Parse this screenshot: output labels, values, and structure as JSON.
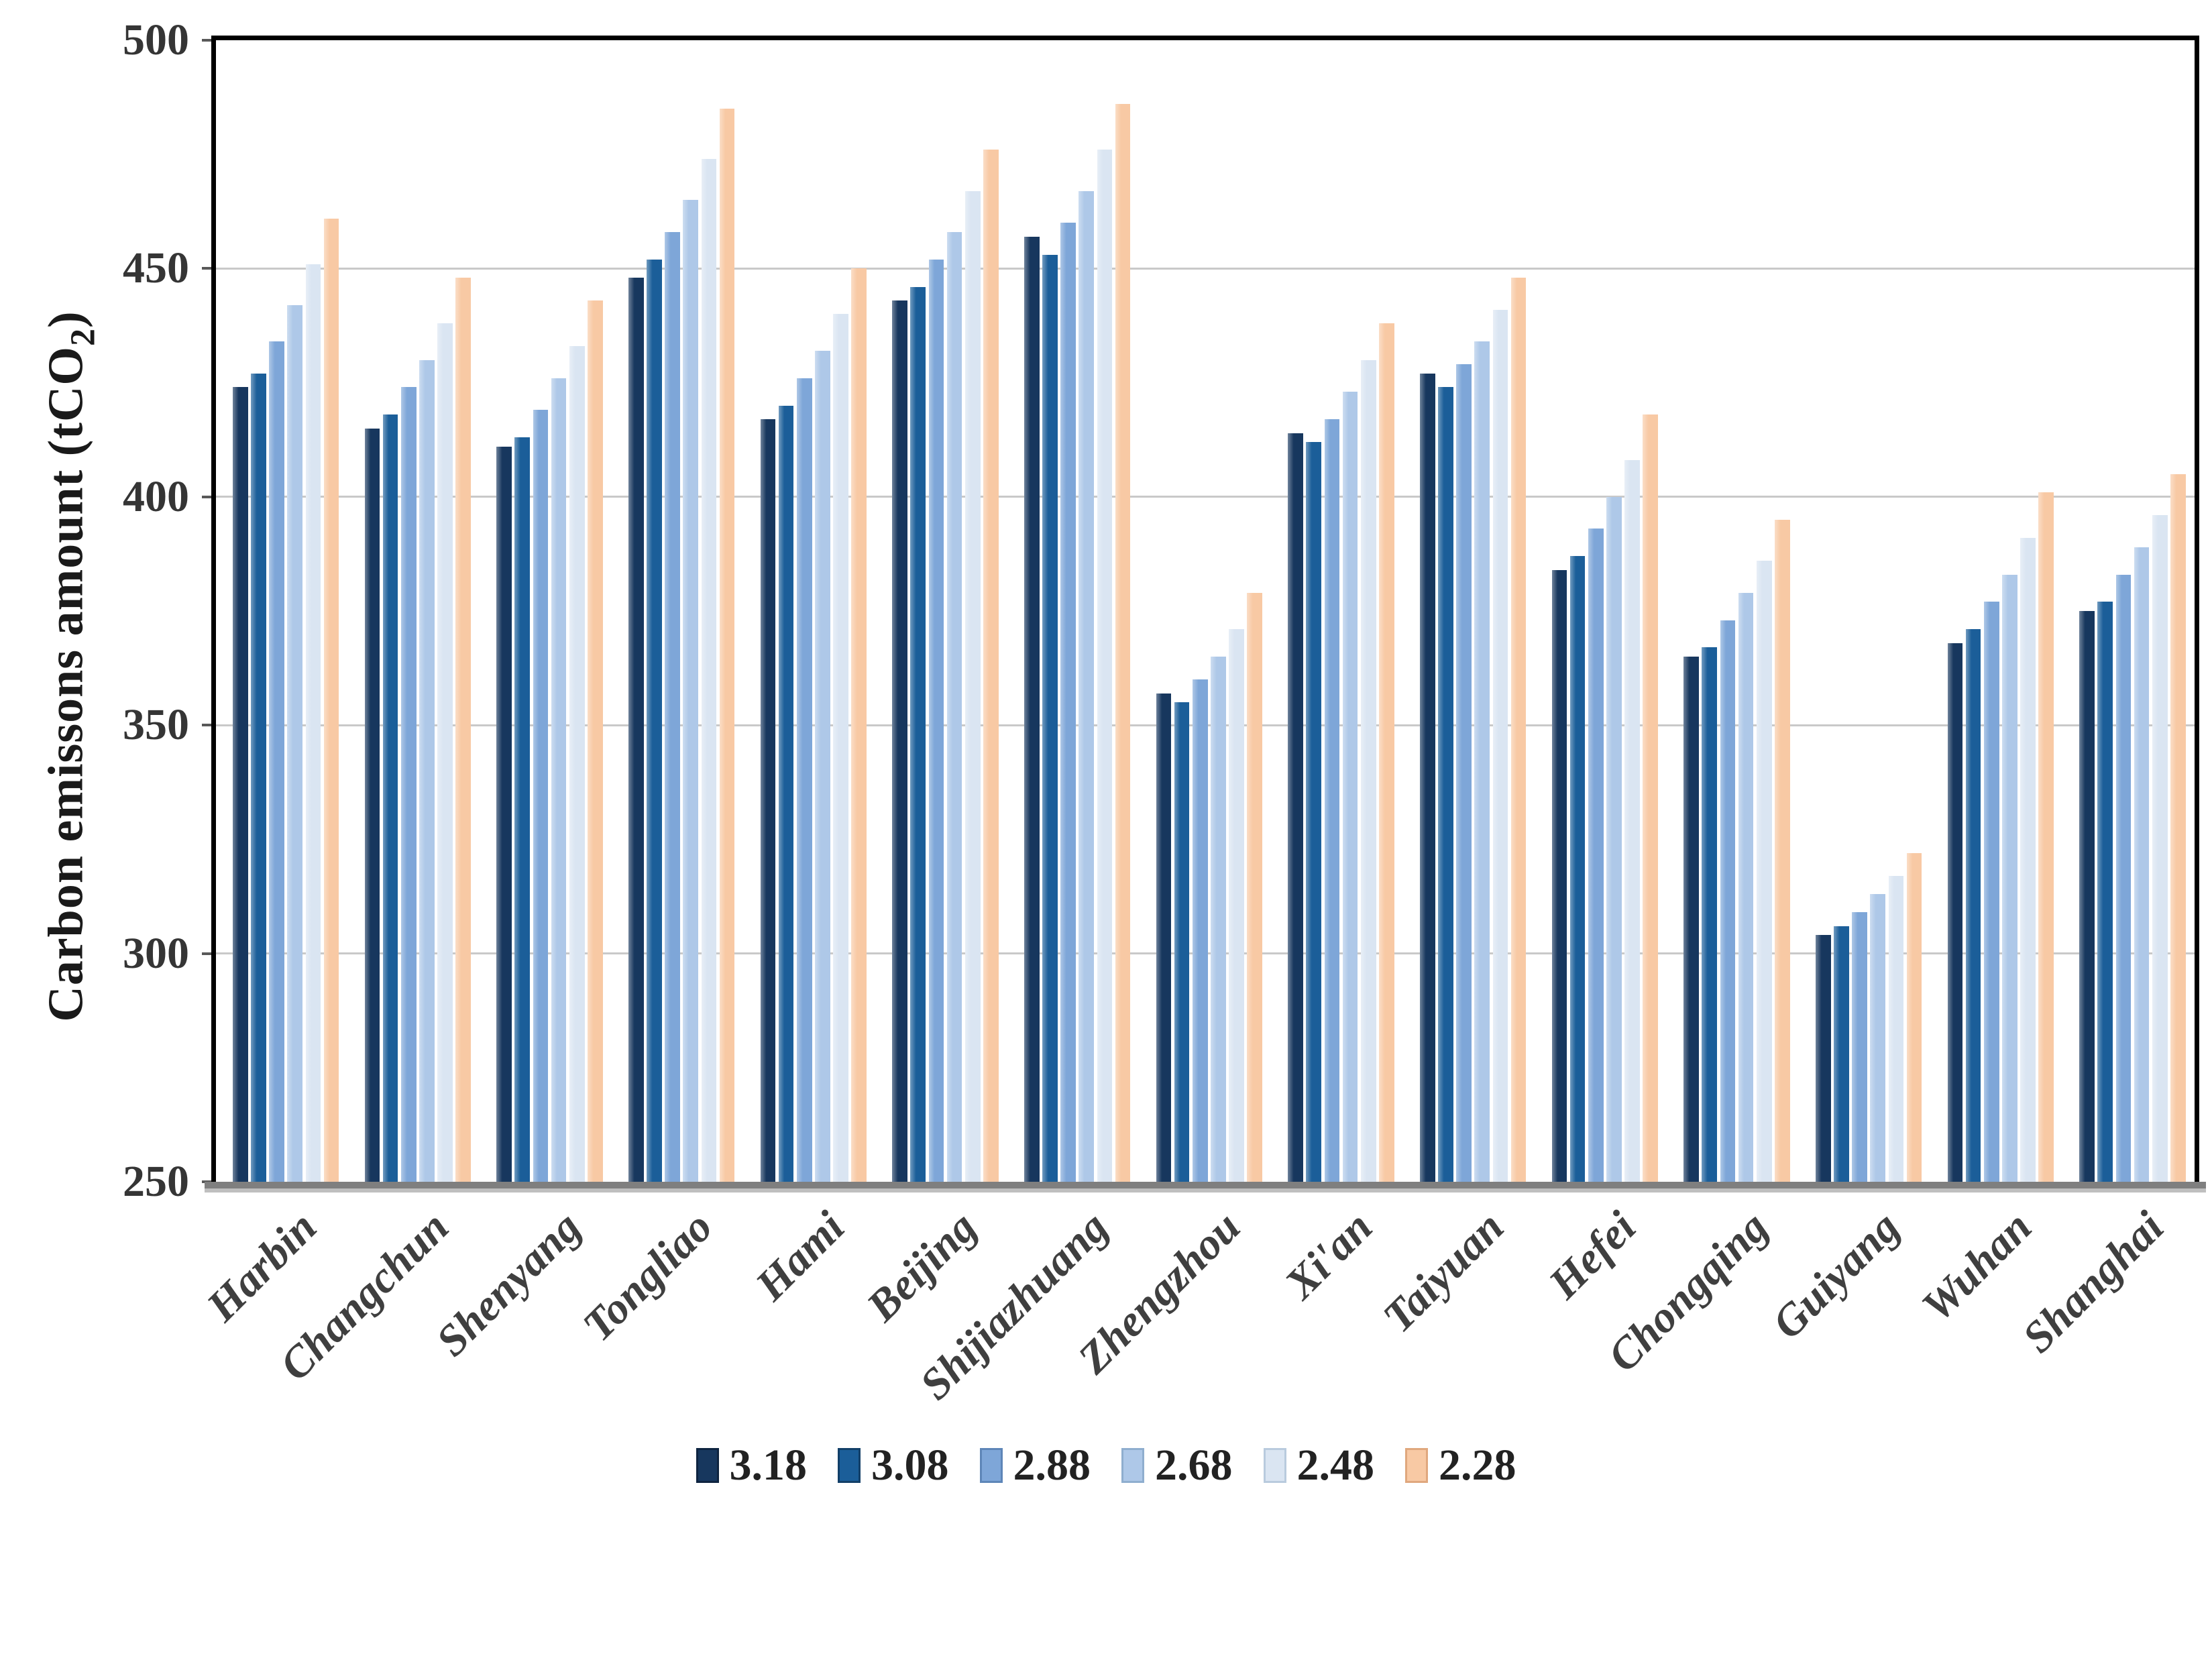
{
  "y_axis": {
    "title_prefix": "Carbon emissons amount (tCO",
    "title_sub": "2",
    "title_suffix": ")",
    "tick_labels": [
      "500",
      "450",
      "400",
      "350",
      "300",
      "250"
    ],
    "min": 250,
    "max": 500,
    "tick_step": 50
  },
  "chart_data": {
    "type": "bar",
    "title": "",
    "xlabel": "",
    "ylabel": "Carbon emissons amount (tCO2)",
    "ylim": [
      250,
      500
    ],
    "grid": true,
    "gridlines_at": [
      300,
      350,
      400,
      450
    ],
    "legend_position": "bottom",
    "categories": [
      "Harbin",
      "Changchun",
      "Shenyang",
      "Tongliao",
      "Hami",
      "Beijing",
      "Shijiazhuang",
      "Zhengzhou",
      "Xi'an",
      "Taiyuan",
      "Hefei",
      "Chongqing",
      "Guiyang",
      "Wuhan",
      "Shanghai"
    ],
    "series": [
      {
        "name": "3.18",
        "color": "#17375E",
        "border": "#0E2440",
        "values": [
          424,
          415,
          411,
          448,
          417,
          443,
          457,
          357,
          414,
          427,
          384,
          365,
          304,
          368,
          375
        ]
      },
      {
        "name": "3.08",
        "color": "#1B5E99",
        "border": "#123F68",
        "values": [
          427,
          418,
          413,
          452,
          420,
          446,
          453,
          355,
          412,
          424,
          387,
          367,
          306,
          371,
          377
        ]
      },
      {
        "name": "2.88",
        "color": "#7EA6D8",
        "border": "#5E86B8",
        "values": [
          434,
          424,
          419,
          458,
          426,
          452,
          460,
          360,
          417,
          429,
          393,
          373,
          309,
          377,
          383
        ]
      },
      {
        "name": "2.68",
        "color": "#AEC8E8",
        "border": "#8FAECF",
        "values": [
          442,
          430,
          426,
          465,
          432,
          458,
          467,
          365,
          423,
          434,
          400,
          379,
          313,
          383,
          389
        ]
      },
      {
        "name": "2.48",
        "color": "#DAE5F2",
        "border": "#B9CBDE",
        "values": [
          451,
          438,
          433,
          474,
          440,
          467,
          476,
          371,
          430,
          441,
          408,
          386,
          317,
          391,
          396
        ]
      },
      {
        "name": "2.28",
        "color": "#F8C9A4",
        "border": "#E0A87E",
        "values": [
          461,
          448,
          443,
          485,
          450,
          476,
          486,
          379,
          438,
          448,
          418,
          395,
          322,
          401,
          405
        ]
      }
    ]
  },
  "colors": {
    "gridline": "#C9C9C9",
    "axis_line": "#7F7F7F",
    "axis_line_light": "#BFBFBF",
    "frame": "#000000"
  }
}
